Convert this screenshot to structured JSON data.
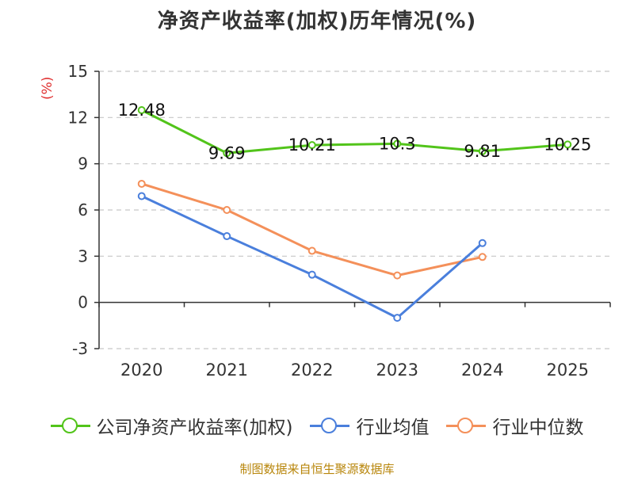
{
  "chart_data": {
    "type": "line",
    "title": "净资产收益率(加权)历年情况(%)",
    "ylabel": "(%)",
    "xlabel": "",
    "categories": [
      "2020",
      "2021",
      "2022",
      "2023",
      "2024",
      "2025"
    ],
    "ylim": [
      -3,
      15
    ],
    "yticks": [
      -3,
      0,
      3,
      6,
      9,
      12,
      15
    ],
    "grid": true,
    "legend_position": "bottom",
    "series": [
      {
        "name": "公司净资产收益率(加权)",
        "color": "#52c41a",
        "values": [
          12.48,
          9.69,
          10.21,
          10.3,
          9.81,
          10.25
        ],
        "labels": [
          "12.48",
          "9.69",
          "10.21",
          "10.3",
          "9.81",
          "10.25"
        ],
        "show_labels": true
      },
      {
        "name": "行业均值",
        "color": "#4a7fdc",
        "values": [
          6.9,
          4.3,
          1.8,
          -1.0,
          3.85,
          null
        ],
        "show_labels": false
      },
      {
        "name": "行业中位数",
        "color": "#f4905a",
        "values": [
          7.7,
          6.0,
          3.35,
          1.75,
          2.95,
          null
        ],
        "show_labels": false
      }
    ]
  },
  "footer": {
    "source": "制图数据来自恒生聚源数据库"
  }
}
